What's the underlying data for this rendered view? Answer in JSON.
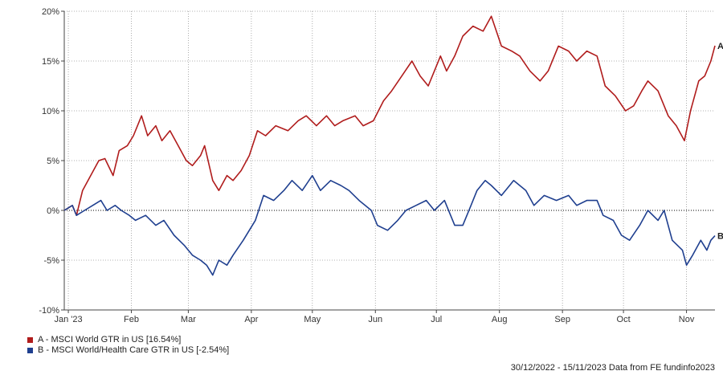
{
  "chart_data": {
    "type": "line",
    "ylim": [
      -10,
      20
    ],
    "yticks": [
      "20%",
      "15%",
      "10%",
      "5%",
      "0%",
      "-5%",
      "-10%"
    ],
    "ytick_values": [
      20,
      15,
      10,
      5,
      0,
      -5,
      -10
    ],
    "xtick_labels": [
      "Jan '23",
      "Feb",
      "Mar",
      "Apr",
      "May",
      "Jun",
      "Jul",
      "Aug",
      "Sep",
      "Oct",
      "Nov"
    ],
    "xtick_values": [
      "2023-01-01",
      "2023-02-01",
      "2023-03-01",
      "2023-04-01",
      "2023-05-01",
      "2023-06-01",
      "2023-07-01",
      "2023-08-01",
      "2023-09-01",
      "2023-10-01",
      "2023-11-01"
    ],
    "xlim": [
      "2022-12-30",
      "2023-11-15"
    ],
    "grid": "dotted",
    "zero_line": "dotted",
    "series": [
      {
        "name": "A - MSCI World GTR in US [16.54%]",
        "end_label": "A",
        "color": "#b01c1c",
        "points": [
          [
            "2022-12-30",
            0.0
          ],
          [
            "2023-01-03",
            0.5
          ],
          [
            "2023-01-05",
            -0.5
          ],
          [
            "2023-01-08",
            2.0
          ],
          [
            "2023-01-12",
            3.5
          ],
          [
            "2023-01-16",
            5.0
          ],
          [
            "2023-01-19",
            5.2
          ],
          [
            "2023-01-23",
            3.5
          ],
          [
            "2023-01-26",
            6.0
          ],
          [
            "2023-01-30",
            6.5
          ],
          [
            "2023-02-02",
            7.5
          ],
          [
            "2023-02-06",
            9.5
          ],
          [
            "2023-02-09",
            7.5
          ],
          [
            "2023-02-13",
            8.5
          ],
          [
            "2023-02-16",
            7.0
          ],
          [
            "2023-02-20",
            8.0
          ],
          [
            "2023-02-24",
            6.5
          ],
          [
            "2023-02-28",
            5.0
          ],
          [
            "2023-03-03",
            4.5
          ],
          [
            "2023-03-07",
            5.5
          ],
          [
            "2023-03-09",
            6.5
          ],
          [
            "2023-03-13",
            3.0
          ],
          [
            "2023-03-16",
            2.0
          ],
          [
            "2023-03-20",
            3.5
          ],
          [
            "2023-03-23",
            3.0
          ],
          [
            "2023-03-27",
            4.0
          ],
          [
            "2023-03-31",
            5.5
          ],
          [
            "2023-04-04",
            8.0
          ],
          [
            "2023-04-08",
            7.5
          ],
          [
            "2023-04-13",
            8.5
          ],
          [
            "2023-04-19",
            8.0
          ],
          [
            "2023-04-24",
            9.0
          ],
          [
            "2023-04-28",
            9.5
          ],
          [
            "2023-05-03",
            8.5
          ],
          [
            "2023-05-08",
            9.5
          ],
          [
            "2023-05-12",
            8.5
          ],
          [
            "2023-05-16",
            9.0
          ],
          [
            "2023-05-22",
            9.5
          ],
          [
            "2023-05-26",
            8.5
          ],
          [
            "2023-05-31",
            9.0
          ],
          [
            "2023-06-05",
            11.0
          ],
          [
            "2023-06-09",
            12.0
          ],
          [
            "2023-06-14",
            13.5
          ],
          [
            "2023-06-19",
            15.0
          ],
          [
            "2023-06-23",
            13.5
          ],
          [
            "2023-06-27",
            12.5
          ],
          [
            "2023-06-30",
            14.0
          ],
          [
            "2023-07-03",
            15.5
          ],
          [
            "2023-07-06",
            14.0
          ],
          [
            "2023-07-10",
            15.5
          ],
          [
            "2023-07-14",
            17.5
          ],
          [
            "2023-07-19",
            18.5
          ],
          [
            "2023-07-24",
            18.0
          ],
          [
            "2023-07-28",
            19.5
          ],
          [
            "2023-08-02",
            16.5
          ],
          [
            "2023-08-07",
            16.0
          ],
          [
            "2023-08-11",
            15.5
          ],
          [
            "2023-08-16",
            14.0
          ],
          [
            "2023-08-21",
            13.0
          ],
          [
            "2023-08-25",
            14.0
          ],
          [
            "2023-08-30",
            16.5
          ],
          [
            "2023-09-04",
            16.0
          ],
          [
            "2023-09-08",
            15.0
          ],
          [
            "2023-09-13",
            16.0
          ],
          [
            "2023-09-18",
            15.5
          ],
          [
            "2023-09-22",
            12.5
          ],
          [
            "2023-09-27",
            11.5
          ],
          [
            "2023-10-02",
            10.0
          ],
          [
            "2023-10-06",
            10.5
          ],
          [
            "2023-10-10",
            12.0
          ],
          [
            "2023-10-13",
            13.0
          ],
          [
            "2023-10-18",
            12.0
          ],
          [
            "2023-10-23",
            9.5
          ],
          [
            "2023-10-27",
            8.5
          ],
          [
            "2023-10-31",
            7.0
          ],
          [
            "2023-11-03",
            10.0
          ],
          [
            "2023-11-07",
            13.0
          ],
          [
            "2023-11-10",
            13.5
          ],
          [
            "2023-11-13",
            15.0
          ],
          [
            "2023-11-15",
            16.54
          ]
        ]
      },
      {
        "name": "B - MSCI World/Health Care GTR in US [-2.54%]",
        "end_label": "B",
        "color": "#1f3f8f",
        "points": [
          [
            "2022-12-30",
            0.0
          ],
          [
            "2023-01-03",
            0.5
          ],
          [
            "2023-01-05",
            -0.5
          ],
          [
            "2023-01-09",
            0.0
          ],
          [
            "2023-01-13",
            0.5
          ],
          [
            "2023-01-17",
            1.0
          ],
          [
            "2023-01-20",
            0.0
          ],
          [
            "2023-01-24",
            0.5
          ],
          [
            "2023-01-27",
            0.0
          ],
          [
            "2023-01-31",
            -0.5
          ],
          [
            "2023-02-03",
            -1.0
          ],
          [
            "2023-02-08",
            -0.5
          ],
          [
            "2023-02-13",
            -1.5
          ],
          [
            "2023-02-17",
            -1.0
          ],
          [
            "2023-02-22",
            -2.5
          ],
          [
            "2023-02-27",
            -3.5
          ],
          [
            "2023-03-03",
            -4.5
          ],
          [
            "2023-03-07",
            -5.0
          ],
          [
            "2023-03-10",
            -5.5
          ],
          [
            "2023-03-13",
            -6.5
          ],
          [
            "2023-03-16",
            -5.0
          ],
          [
            "2023-03-20",
            -5.5
          ],
          [
            "2023-03-23",
            -4.5
          ],
          [
            "2023-03-28",
            -3.0
          ],
          [
            "2023-04-03",
            -1.0
          ],
          [
            "2023-04-07",
            1.5
          ],
          [
            "2023-04-12",
            1.0
          ],
          [
            "2023-04-17",
            2.0
          ],
          [
            "2023-04-21",
            3.0
          ],
          [
            "2023-04-26",
            2.0
          ],
          [
            "2023-05-01",
            3.5
          ],
          [
            "2023-05-05",
            2.0
          ],
          [
            "2023-05-10",
            3.0
          ],
          [
            "2023-05-15",
            2.5
          ],
          [
            "2023-05-19",
            2.0
          ],
          [
            "2023-05-24",
            1.0
          ],
          [
            "2023-05-30",
            0.0
          ],
          [
            "2023-06-02",
            -1.5
          ],
          [
            "2023-06-07",
            -2.0
          ],
          [
            "2023-06-12",
            -1.0
          ],
          [
            "2023-06-16",
            0.0
          ],
          [
            "2023-06-21",
            0.5
          ],
          [
            "2023-06-26",
            1.0
          ],
          [
            "2023-06-30",
            0.0
          ],
          [
            "2023-07-05",
            1.0
          ],
          [
            "2023-07-10",
            -1.5
          ],
          [
            "2023-07-14",
            -1.5
          ],
          [
            "2023-07-18",
            0.5
          ],
          [
            "2023-07-21",
            2.0
          ],
          [
            "2023-07-25",
            3.0
          ],
          [
            "2023-07-28",
            2.5
          ],
          [
            "2023-08-02",
            1.5
          ],
          [
            "2023-08-08",
            3.0
          ],
          [
            "2023-08-14",
            2.0
          ],
          [
            "2023-08-18",
            0.5
          ],
          [
            "2023-08-23",
            1.5
          ],
          [
            "2023-08-29",
            1.0
          ],
          [
            "2023-09-04",
            1.5
          ],
          [
            "2023-09-08",
            0.5
          ],
          [
            "2023-09-13",
            1.0
          ],
          [
            "2023-09-18",
            1.0
          ],
          [
            "2023-09-21",
            -0.5
          ],
          [
            "2023-09-26",
            -1.0
          ],
          [
            "2023-09-30",
            -2.5
          ],
          [
            "2023-10-04",
            -3.0
          ],
          [
            "2023-10-09",
            -1.5
          ],
          [
            "2023-10-13",
            0.0
          ],
          [
            "2023-10-18",
            -1.0
          ],
          [
            "2023-10-21",
            0.0
          ],
          [
            "2023-10-25",
            -3.0
          ],
          [
            "2023-10-30",
            -4.0
          ],
          [
            "2023-11-01",
            -5.5
          ],
          [
            "2023-11-04",
            -4.5
          ],
          [
            "2023-11-08",
            -3.0
          ],
          [
            "2023-11-11",
            -4.0
          ],
          [
            "2023-11-13",
            -3.0
          ],
          [
            "2023-11-15",
            -2.54
          ]
        ]
      }
    ]
  },
  "legend": {
    "a_label": "A - MSCI World GTR in US [16.54%]",
    "b_label": "B - MSCI World/Health Care GTR in US [-2.54%]",
    "a_color": "#b01c1c",
    "b_color": "#1f3f8f"
  },
  "footer": {
    "text": "30/12/2022 - 15/11/2023 Data from FE fundinfo2023"
  }
}
